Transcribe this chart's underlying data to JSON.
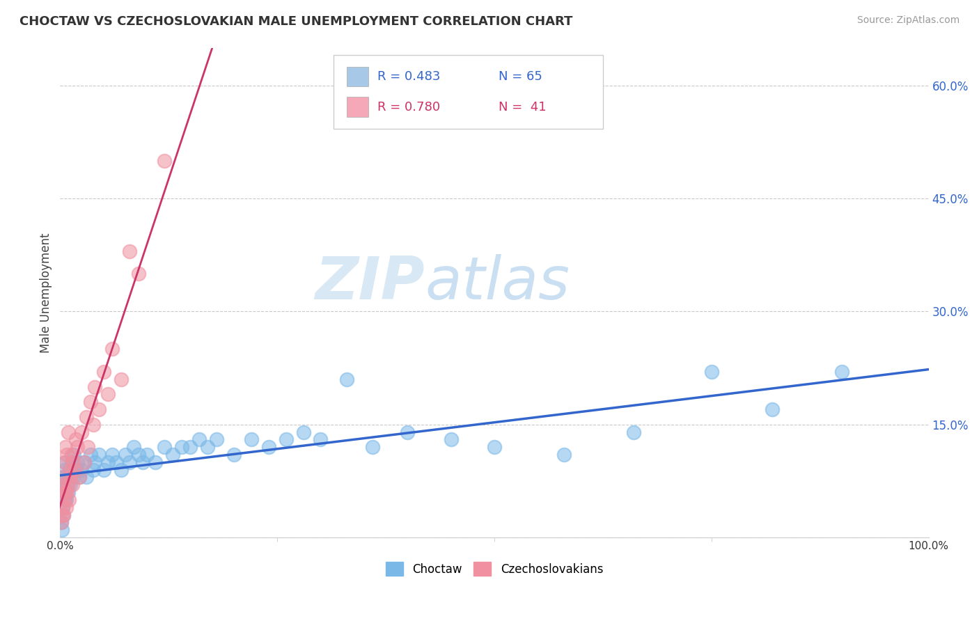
{
  "title": "CHOCTAW VS CZECHOSLOVAKIAN MALE UNEMPLOYMENT CORRELATION CHART",
  "source": "Source: ZipAtlas.com",
  "ylabel": "Male Unemployment",
  "yticks": [
    0.0,
    0.15,
    0.3,
    0.45,
    0.6
  ],
  "ytick_labels": [
    "",
    "15.0%",
    "30.0%",
    "45.0%",
    "60.0%"
  ],
  "xtick_labels": [
    "0.0%",
    "100.0%"
  ],
  "legend_entries": [
    {
      "label": "Choctaw",
      "color": "#a8c8e8",
      "R": 0.483,
      "N": 65
    },
    {
      "label": "Czechoslovakians",
      "color": "#f4a8b8",
      "R": 0.78,
      "N": 41
    }
  ],
  "choctaw_scatter_color": "#7ab8e8",
  "czechoslovakian_scatter_color": "#f090a0",
  "choctaw_line_color": "#3366cc",
  "czechoslovakian_line_color": "#cc3366",
  "choctaw_x": [
    0.001,
    0.002,
    0.003,
    0.003,
    0.004,
    0.004,
    0.005,
    0.005,
    0.006,
    0.006,
    0.007,
    0.007,
    0.008,
    0.009,
    0.01,
    0.011,
    0.012,
    0.013,
    0.015,
    0.016,
    0.018,
    0.02,
    0.022,
    0.025,
    0.028,
    0.03,
    0.035,
    0.038,
    0.04,
    0.045,
    0.05,
    0.055,
    0.06,
    0.065,
    0.07,
    0.075,
    0.08,
    0.085,
    0.09,
    0.095,
    0.1,
    0.11,
    0.12,
    0.13,
    0.14,
    0.15,
    0.16,
    0.17,
    0.18,
    0.2,
    0.22,
    0.24,
    0.26,
    0.28,
    0.3,
    0.33,
    0.36,
    0.4,
    0.45,
    0.5,
    0.58,
    0.66,
    0.75,
    0.82,
    0.9
  ],
  "choctaw_y": [
    0.02,
    0.01,
    0.04,
    0.07,
    0.03,
    0.08,
    0.05,
    0.09,
    0.06,
    0.1,
    0.05,
    0.08,
    0.07,
    0.06,
    0.08,
    0.09,
    0.07,
    0.1,
    0.08,
    0.11,
    0.09,
    0.1,
    0.08,
    0.09,
    0.1,
    0.08,
    0.11,
    0.09,
    0.1,
    0.11,
    0.09,
    0.1,
    0.11,
    0.1,
    0.09,
    0.11,
    0.1,
    0.12,
    0.11,
    0.1,
    0.11,
    0.1,
    0.12,
    0.11,
    0.12,
    0.12,
    0.13,
    0.12,
    0.13,
    0.11,
    0.13,
    0.12,
    0.13,
    0.14,
    0.13,
    0.21,
    0.12,
    0.14,
    0.13,
    0.12,
    0.11,
    0.14,
    0.22,
    0.17,
    0.22
  ],
  "czechoslovakian_x": [
    0.001,
    0.002,
    0.002,
    0.003,
    0.003,
    0.004,
    0.004,
    0.005,
    0.005,
    0.006,
    0.006,
    0.007,
    0.008,
    0.008,
    0.009,
    0.009,
    0.01,
    0.011,
    0.012,
    0.013,
    0.014,
    0.015,
    0.017,
    0.018,
    0.02,
    0.022,
    0.025,
    0.028,
    0.03,
    0.032,
    0.035,
    0.038,
    0.04,
    0.045,
    0.05,
    0.055,
    0.06,
    0.07,
    0.08,
    0.09,
    0.12
  ],
  "czechoslovakian_y": [
    0.02,
    0.03,
    0.06,
    0.04,
    0.08,
    0.03,
    0.07,
    0.05,
    0.1,
    0.06,
    0.12,
    0.04,
    0.06,
    0.11,
    0.07,
    0.14,
    0.05,
    0.09,
    0.08,
    0.11,
    0.07,
    0.1,
    0.09,
    0.13,
    0.12,
    0.08,
    0.14,
    0.1,
    0.16,
    0.12,
    0.18,
    0.15,
    0.2,
    0.17,
    0.22,
    0.19,
    0.25,
    0.21,
    0.38,
    0.35,
    0.5
  ],
  "watermark_zip": "ZIP",
  "watermark_atlas": "atlas",
  "background_color": "#ffffff",
  "grid_color": "#bbbbbb",
  "xlim": [
    0.0,
    1.0
  ],
  "ylim": [
    0.0,
    0.65
  ]
}
